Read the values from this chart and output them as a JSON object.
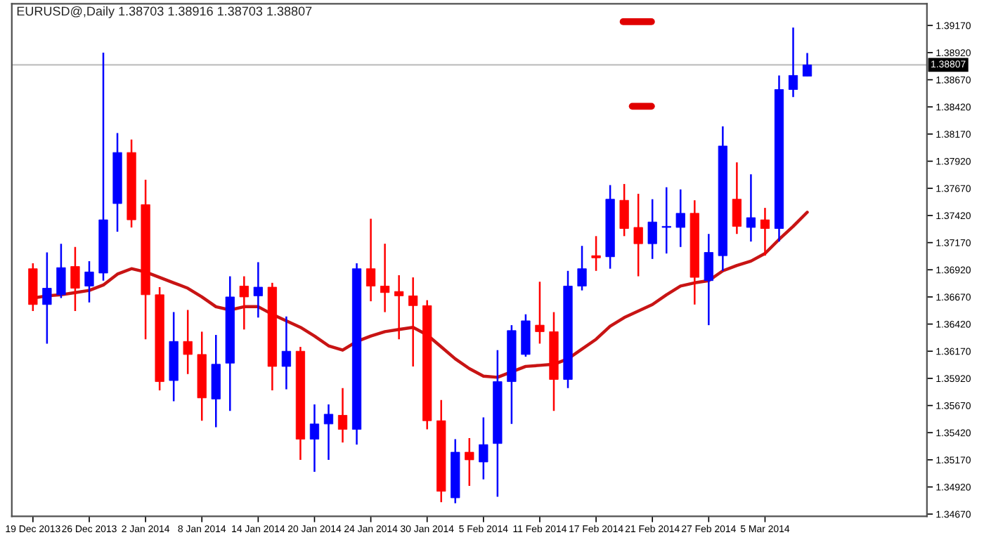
{
  "chart_data": {
    "type": "candlestick",
    "title": "EURUSD@,Daily 1.38703 1.38916 1.38703 1.38807",
    "categories": [
      "19 Dec 2013",
      null,
      null,
      null,
      "26 Dec 2013",
      null,
      null,
      null,
      "2 Jan 2014",
      null,
      null,
      null,
      "8 Jan 2014",
      null,
      null,
      null,
      "14 Jan 2014",
      null,
      null,
      null,
      "20 Jan 2014",
      null,
      null,
      null,
      "24 Jan 2014",
      null,
      null,
      null,
      "30 Jan 2014",
      null,
      null,
      null,
      "5 Feb 2014",
      null,
      null,
      null,
      "11 Feb 2014",
      null,
      null,
      null,
      "17 Feb 2014",
      null,
      null,
      null,
      "21 Feb 2014",
      null,
      null,
      null,
      "27 Feb 2014",
      null,
      null,
      null,
      "5 Mar 2014",
      null,
      null,
      null
    ],
    "ohlc": [
      [
        1.3693,
        1.3698,
        1.3654,
        1.366
      ],
      [
        1.366,
        1.3708,
        1.3624,
        1.3675
      ],
      [
        1.3669,
        1.3716,
        1.3666,
        1.3694
      ],
      [
        1.3695,
        1.3713,
        1.3654,
        1.3675
      ],
      [
        1.3677,
        1.37,
        1.3662,
        1.369
      ],
      [
        1.3689,
        1.3892,
        1.3682,
        1.3738
      ],
      [
        1.3753,
        1.3818,
        1.3727,
        1.38
      ],
      [
        1.38,
        1.3812,
        1.3731,
        1.3738
      ],
      [
        1.3752,
        1.3775,
        1.3628,
        1.3669
      ],
      [
        1.3669,
        1.3676,
        1.3581,
        1.3589
      ],
      [
        1.359,
        1.3653,
        1.3571,
        1.3626
      ],
      [
        1.3626,
        1.3655,
        1.3596,
        1.3614
      ],
      [
        1.3614,
        1.3635,
        1.3553,
        1.3574
      ],
      [
        1.3573,
        1.3632,
        1.3547,
        1.3605
      ],
      [
        1.3606,
        1.3686,
        1.3562,
        1.3667
      ],
      [
        1.3677,
        1.3686,
        1.3637,
        1.3667
      ],
      [
        1.3668,
        1.3699,
        1.3648,
        1.3676
      ],
      [
        1.3676,
        1.368,
        1.3581,
        1.3603
      ],
      [
        1.3603,
        1.3649,
        1.3582,
        1.3617
      ],
      [
        1.3617,
        1.3621,
        1.3517,
        1.3536
      ],
      [
        1.3536,
        1.3568,
        1.3506,
        1.355
      ],
      [
        1.355,
        1.3568,
        1.3517,
        1.3559
      ],
      [
        1.3558,
        1.3583,
        1.3533,
        1.3545
      ],
      [
        1.3545,
        1.3698,
        1.3531,
        1.3693
      ],
      [
        1.3693,
        1.3739,
        1.3663,
        1.3677
      ],
      [
        1.3677,
        1.3716,
        1.3653,
        1.3671
      ],
      [
        1.3672,
        1.3687,
        1.3628,
        1.3668
      ],
      [
        1.3668,
        1.3685,
        1.3603,
        1.3659
      ],
      [
        1.3659,
        1.3664,
        1.3545,
        1.3553
      ],
      [
        1.3553,
        1.3572,
        1.3478,
        1.3488
      ],
      [
        1.3482,
        1.3536,
        1.3477,
        1.3524
      ],
      [
        1.3524,
        1.3537,
        1.3493,
        1.3517
      ],
      [
        1.3515,
        1.3556,
        1.3499,
        1.3531
      ],
      [
        1.3532,
        1.3618,
        1.3483,
        1.3589
      ],
      [
        1.3589,
        1.3641,
        1.355,
        1.3636
      ],
      [
        1.3614,
        1.3651,
        1.3612,
        1.3645
      ],
      [
        1.3641,
        1.3681,
        1.3624,
        1.3635
      ],
      [
        1.3635,
        1.3653,
        1.3562,
        1.3591
      ],
      [
        1.3591,
        1.3691,
        1.3583,
        1.3677
      ],
      [
        1.3677,
        1.3714,
        1.3673,
        1.3693
      ],
      [
        1.3705,
        1.3723,
        1.3691,
        1.3703
      ],
      [
        1.3704,
        1.377,
        1.3693,
        1.3757
      ],
      [
        1.3756,
        1.3771,
        1.3723,
        1.373
      ],
      [
        1.3731,
        1.3762,
        1.3686,
        1.3716
      ],
      [
        1.3716,
        1.3757,
        1.3702,
        1.3736
      ],
      [
        1.3731,
        1.3768,
        1.3707,
        1.3732
      ],
      [
        1.3731,
        1.3766,
        1.3713,
        1.3744
      ],
      [
        1.3744,
        1.3756,
        1.366,
        1.3685
      ],
      [
        1.3682,
        1.3725,
        1.3641,
        1.3708
      ],
      [
        1.3705,
        1.3824,
        1.3691,
        1.3806
      ],
      [
        1.3757,
        1.3791,
        1.3725,
        1.3732
      ],
      [
        1.3731,
        1.378,
        1.3718,
        1.374
      ],
      [
        1.3738,
        1.3749,
        1.3705,
        1.373
      ],
      [
        1.373,
        1.3871,
        1.3718,
        1.3858
      ],
      [
        1.3858,
        1.3915,
        1.3851,
        1.3871
      ],
      [
        1.38703,
        1.38916,
        1.38703,
        1.38807
      ]
    ],
    "colors": [
      "#ff0000",
      "#0000ff",
      "#0000ff",
      "#ff0000",
      "#0000ff",
      "#0000ff",
      "#0000ff",
      "#ff0000",
      "#ff0000",
      "#ff0000",
      "#0000ff",
      "#ff0000",
      "#ff0000",
      "#0000ff",
      "#0000ff",
      "#ff0000",
      "#0000ff",
      "#ff0000",
      "#0000ff",
      "#ff0000",
      "#0000ff",
      "#0000ff",
      "#ff0000",
      "#0000ff",
      "#ff0000",
      "#ff0000",
      "#ff0000",
      "#ff0000",
      "#ff0000",
      "#ff0000",
      "#0000ff",
      "#ff0000",
      "#0000ff",
      "#0000ff",
      "#0000ff",
      "#0000ff",
      "#ff0000",
      "#ff0000",
      "#0000ff",
      "#0000ff",
      "#ff0000",
      "#0000ff",
      "#ff0000",
      "#ff0000",
      "#0000ff",
      "#0000ff",
      "#0000ff",
      "#ff0000",
      "#0000ff",
      "#0000ff",
      "#ff0000",
      "#0000ff",
      "#ff0000",
      "#0000ff",
      "#0000ff",
      "#0000ff"
    ],
    "series": [
      {
        "type": "line",
        "color": "#c81414",
        "values": [
          1.3666,
          1.3668,
          1.3669,
          1.3671,
          1.3673,
          1.3678,
          1.3688,
          1.3693,
          1.369,
          1.3685,
          1.368,
          1.3675,
          1.3667,
          1.3658,
          1.3655,
          1.3658,
          1.3658,
          1.3651,
          1.3645,
          1.3639,
          1.3631,
          1.3622,
          1.3618,
          1.3626,
          1.3631,
          1.3635,
          1.3637,
          1.3639,
          1.3632,
          1.3621,
          1.361,
          1.3601,
          1.3594,
          1.3593,
          1.3598,
          1.3603,
          1.3604,
          1.3605,
          1.361,
          1.3619,
          1.3628,
          1.364,
          1.3648,
          1.3654,
          1.366,
          1.3669,
          1.3677,
          1.368,
          1.3682,
          1.3691,
          1.3696,
          1.37,
          1.3707,
          1.372,
          1.3732,
          1.3745
        ]
      }
    ],
    "ylim": [
      1.3465,
      1.3937
    ],
    "yticks": [
      {
        "value": 1.3467,
        "label": "1.34670"
      },
      {
        "value": 1.3492,
        "label": "1.34920"
      },
      {
        "value": 1.3517,
        "label": "1.35170"
      },
      {
        "value": 1.3542,
        "label": "1.35420"
      },
      {
        "value": 1.3567,
        "label": "1.35670"
      },
      {
        "value": 1.3592,
        "label": "1.35920"
      },
      {
        "value": 1.3617,
        "label": "1.36170"
      },
      {
        "value": 1.3642,
        "label": "1.36420"
      },
      {
        "value": 1.3667,
        "label": "1.36670"
      },
      {
        "value": 1.3692,
        "label": "1.36920"
      },
      {
        "value": 1.3717,
        "label": "1.37170"
      },
      {
        "value": 1.3742,
        "label": "1.37420"
      },
      {
        "value": 1.3767,
        "label": "1.37670"
      },
      {
        "value": 1.3792,
        "label": "1.37920"
      },
      {
        "value": 1.3817,
        "label": "1.38170"
      },
      {
        "value": 1.3842,
        "label": "1.38420"
      },
      {
        "value": 1.3867,
        "label": "1.38670"
      },
      {
        "value": 1.3892,
        "label": "1.38920"
      },
      {
        "value": 1.3917,
        "label": "1.39170"
      }
    ],
    "ref_lines": [
      {
        "axis": "y",
        "value": 1.38807,
        "label": "1.38807",
        "color": "#c0c0c0"
      }
    ],
    "grid": false,
    "legend": false
  }
}
